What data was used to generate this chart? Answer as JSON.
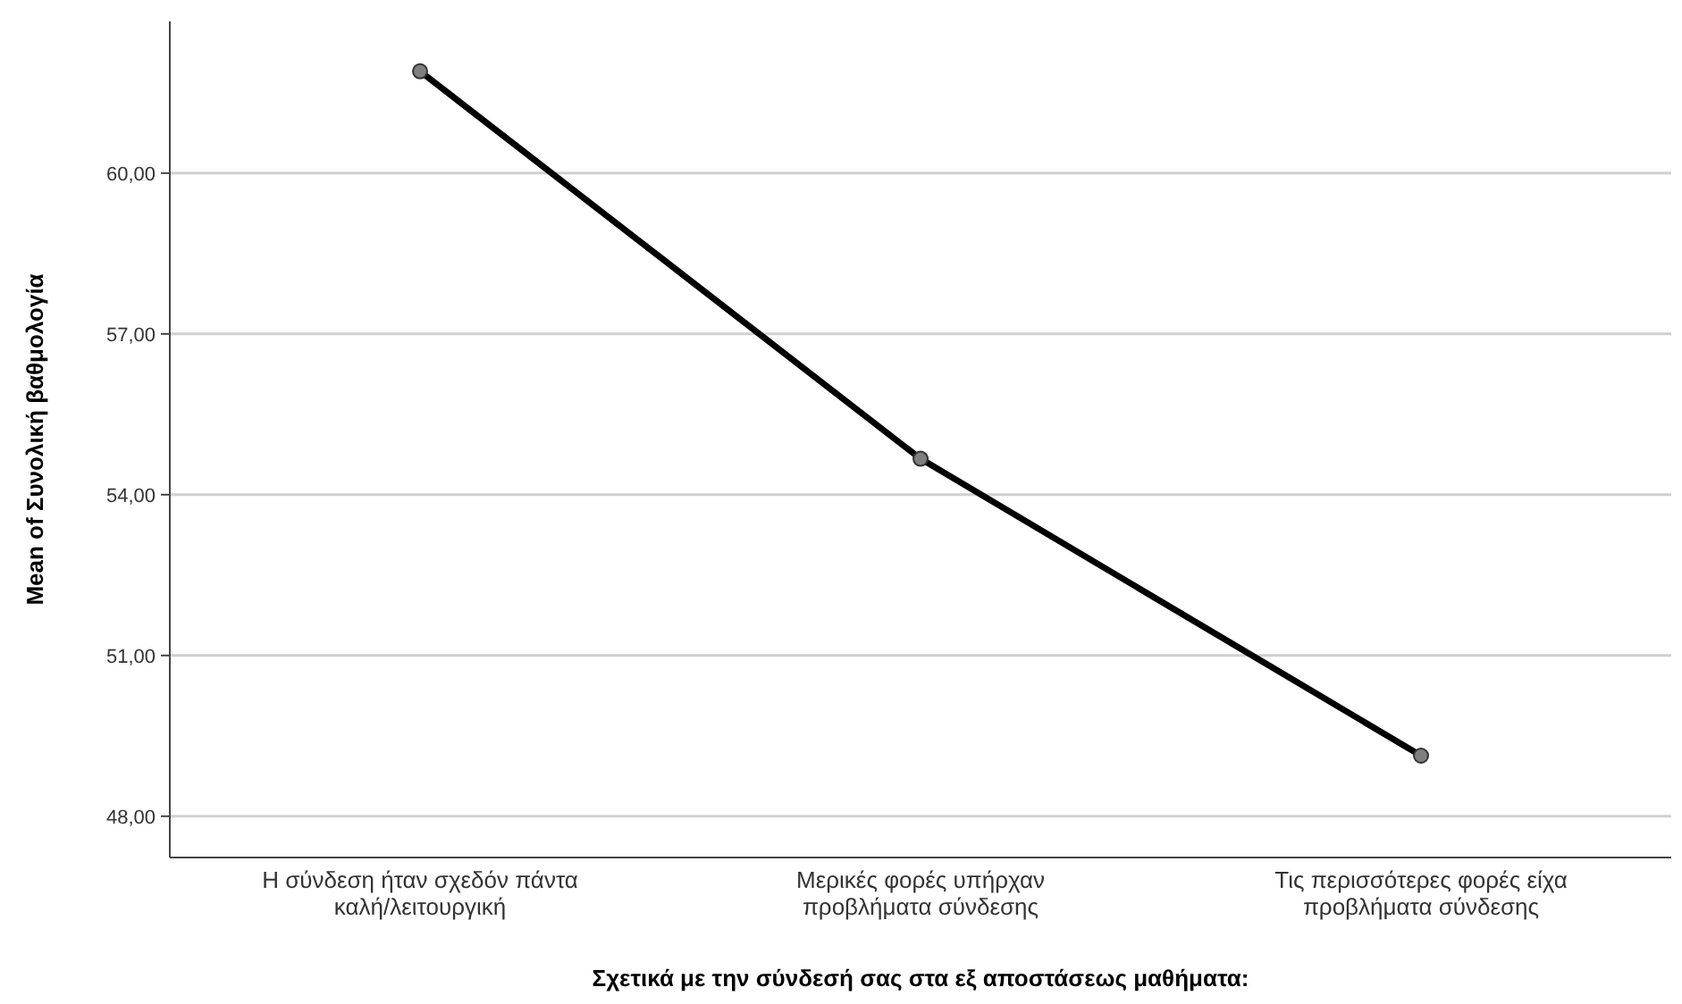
{
  "chart_data": {
    "type": "line",
    "xlabel": "Σχετικά με την σύνδεσή σας στα εξ αποστάσεως μαθήματα:",
    "ylabel": "Mean of Συνολική βαθμολογία",
    "categories": [
      "Η σύνδεση ήταν σχεδόν πάντα\nκαλή/λειτουργική",
      "Μερικές φορές υπήρχαν\nπροβλήματα σύνδεσης",
      "Τις περισσότερες φορές είχα\nπροβλήματα σύνδεσης"
    ],
    "series": [
      {
        "color": "#000000",
        "values": [
          61.9,
          54.67,
          49.13
        ]
      }
    ],
    "ylim": [
      47.23,
      62.83
    ],
    "yticks": [
      {
        "value": 48,
        "label": "48,00"
      },
      {
        "value": 51,
        "label": "51,00"
      },
      {
        "value": 54,
        "label": "54,00"
      },
      {
        "value": 57,
        "label": "57,00"
      },
      {
        "value": 60,
        "label": "60,00"
      }
    ],
    "grid": "y",
    "marker": "circle",
    "line_style": "solid"
  }
}
